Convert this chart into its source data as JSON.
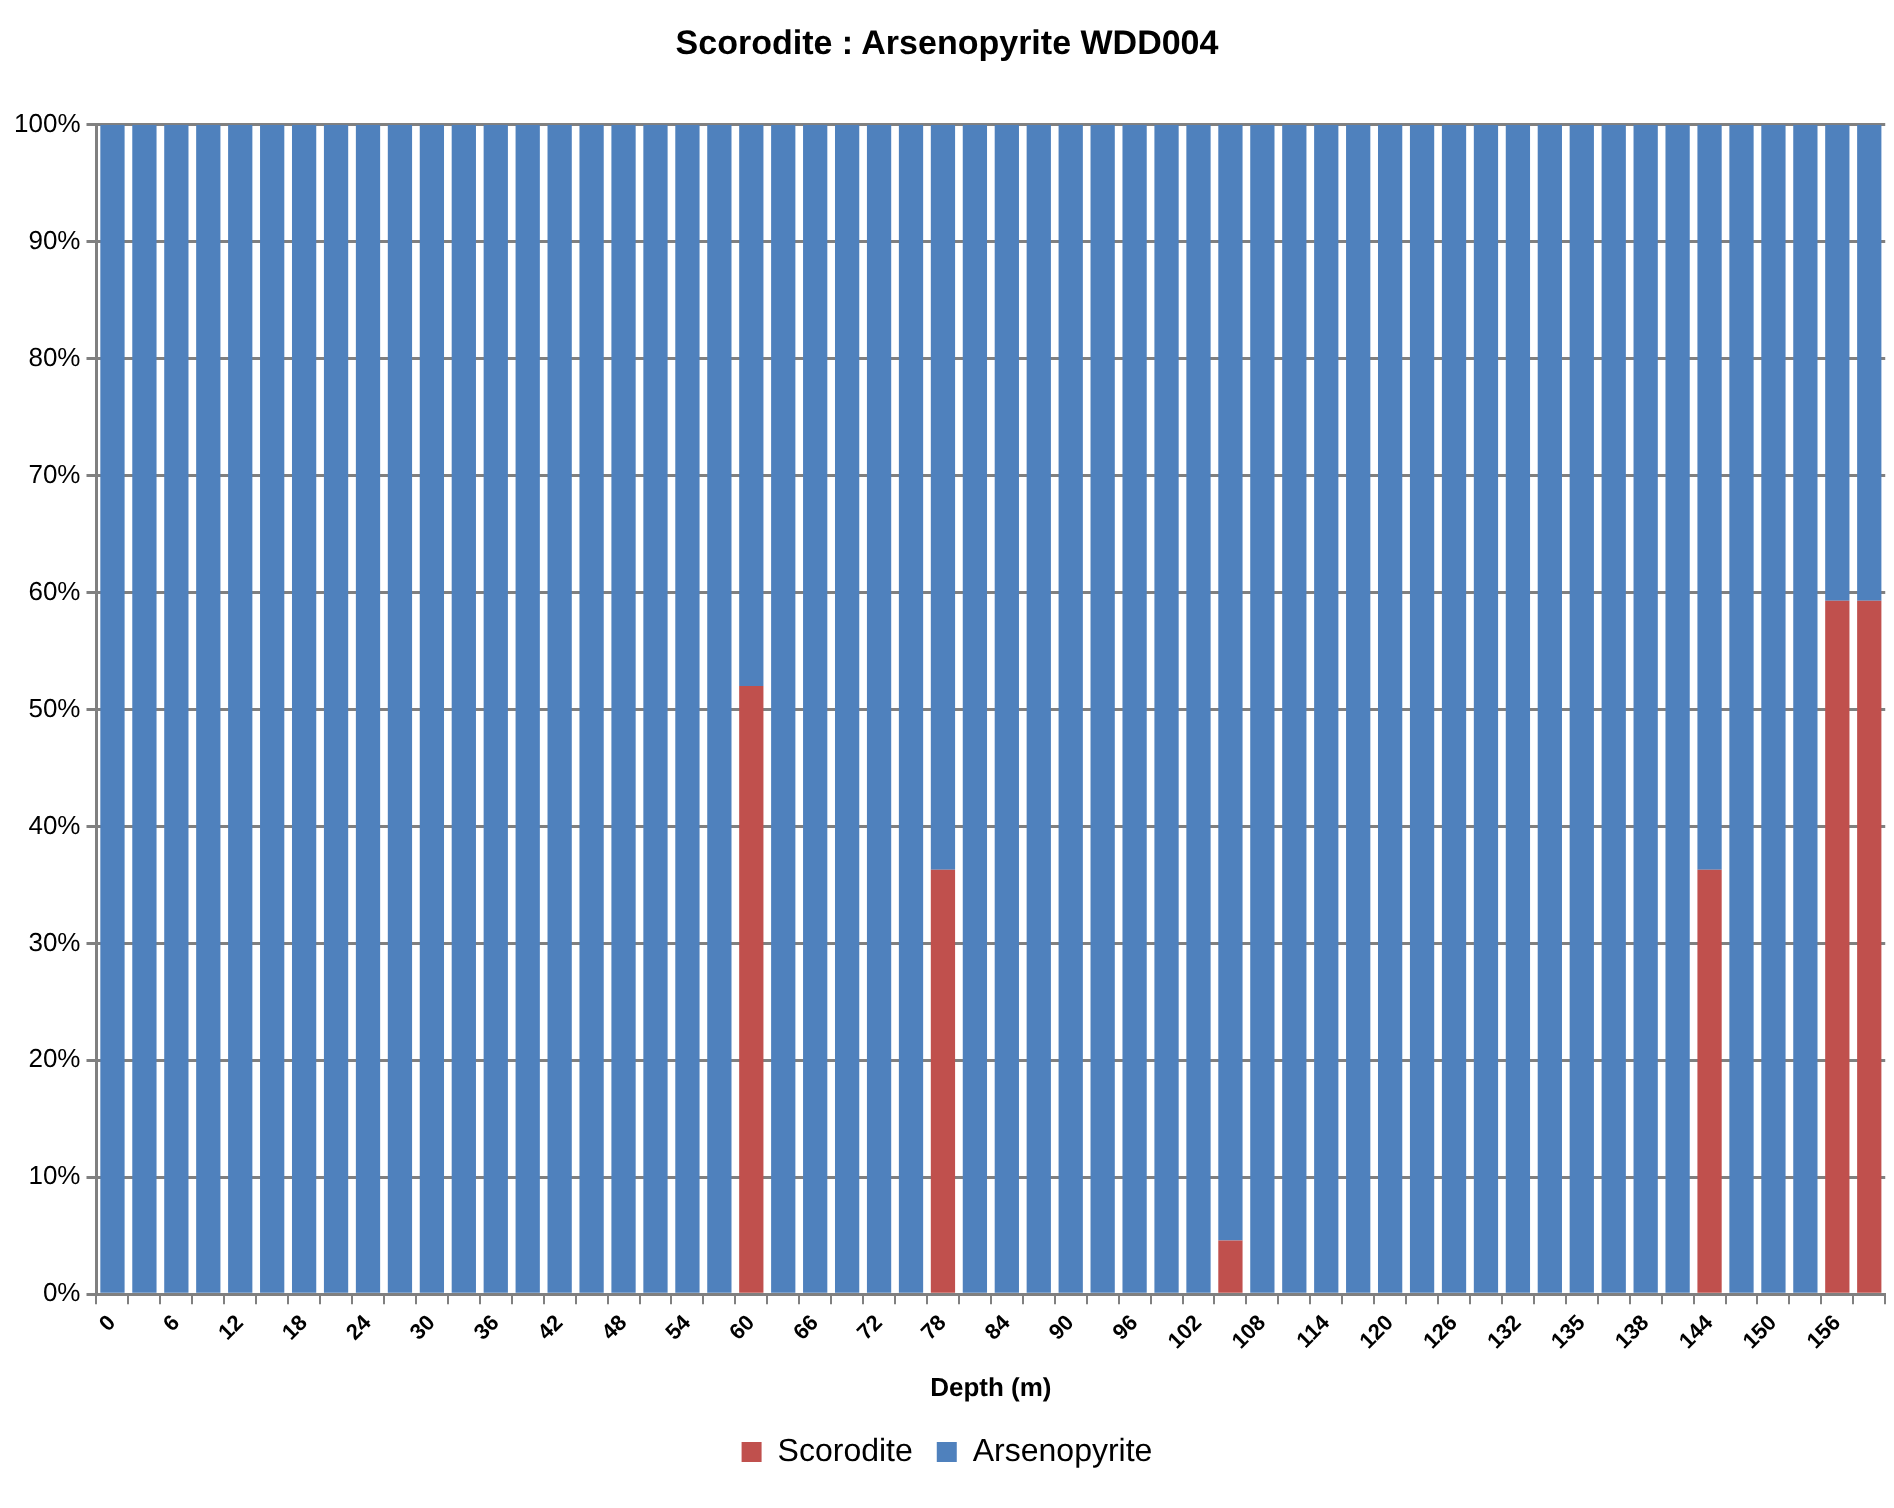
{
  "chart_data": {
    "type": "bar",
    "title": "Scorodite : Arsenopyrite WDD004",
    "xlabel": "Depth (m)",
    "categories": [
      "0",
      null,
      "6",
      null,
      "12",
      null,
      "18",
      null,
      "24",
      null,
      "30",
      null,
      "36",
      null,
      "42",
      null,
      "48",
      null,
      "54",
      null,
      "60",
      null,
      "66",
      null,
      "72",
      null,
      "78",
      null,
      "84",
      null,
      "90",
      null,
      "96",
      null,
      "102",
      null,
      "108",
      null,
      "114",
      null,
      "120",
      null,
      "126",
      null,
      "132",
      null,
      "135",
      null,
      "138",
      null,
      "144",
      null,
      "150",
      null,
      "156",
      null
    ],
    "stacked": true,
    "series": [
      {
        "name": "Scorodite",
        "color": "#c0504d",
        "values": [
          0,
          0,
          0,
          0,
          0,
          0,
          0,
          0,
          0,
          0,
          0,
          0,
          0,
          0,
          0,
          0,
          0,
          0,
          0,
          0,
          52,
          0,
          0,
          0,
          0,
          0,
          36.3,
          0,
          0,
          0,
          0,
          0,
          0,
          0,
          0,
          4.6,
          0,
          0,
          0,
          0,
          0,
          0,
          0,
          0,
          0,
          0,
          0,
          0,
          0,
          0,
          36.3,
          0,
          0,
          0,
          59.3,
          59.3
        ]
      },
      {
        "name": "Arsenopyrite",
        "color": "#4f81bd",
        "values": [
          100,
          100,
          100,
          100,
          100,
          100,
          100,
          100,
          100,
          100,
          100,
          100,
          100,
          100,
          100,
          100,
          100,
          100,
          100,
          100,
          48,
          100,
          100,
          100,
          100,
          100,
          63.7,
          100,
          100,
          100,
          100,
          100,
          100,
          100,
          100,
          95.4,
          100,
          100,
          100,
          100,
          100,
          100,
          100,
          100,
          100,
          100,
          100,
          100,
          100,
          100,
          63.7,
          100,
          100,
          100,
          40.7,
          40.7
        ]
      }
    ],
    "ylim": [
      0,
      100
    ],
    "yticks": [
      {
        "value": 0,
        "label": "0%"
      },
      {
        "value": 10,
        "label": "10%"
      },
      {
        "value": 20,
        "label": "20%"
      },
      {
        "value": 30,
        "label": "30%"
      },
      {
        "value": 40,
        "label": "40%"
      },
      {
        "value": 50,
        "label": "50%"
      },
      {
        "value": 60,
        "label": "60%"
      },
      {
        "value": 70,
        "label": "70%"
      },
      {
        "value": 80,
        "label": "80%"
      },
      {
        "value": 90,
        "label": "90%"
      },
      {
        "value": 100,
        "label": "100%"
      }
    ],
    "grid": "y",
    "legend": "bottom"
  }
}
